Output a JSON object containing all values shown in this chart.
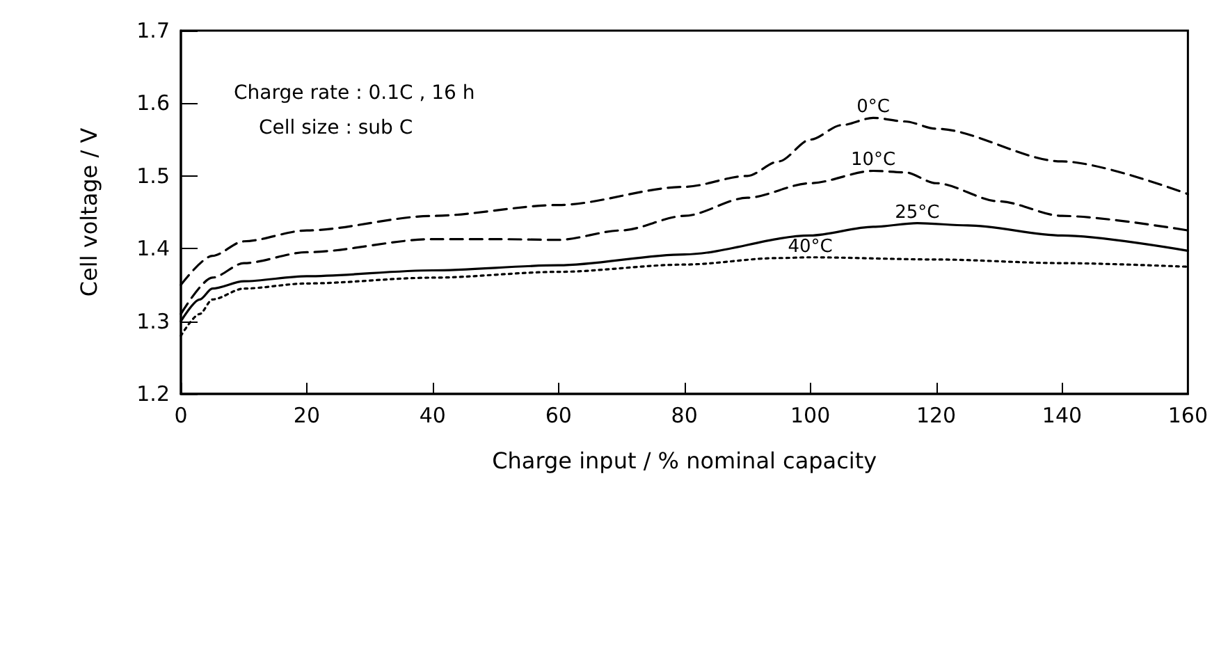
{
  "chart_data": {
    "type": "line",
    "xlabel": "Charge input / % nominal capacity",
    "ylabel": "Cell voltage / V",
    "annotations": [
      "Charge rate : 0.1C , 16 h",
      "Cell size : sub C"
    ],
    "xlim": [
      0,
      160
    ],
    "xticks": [
      0,
      20,
      40,
      60,
      80,
      100,
      120,
      140,
      160
    ],
    "ylim": [
      1.2,
      1.7
    ],
    "yticks": [
      1.2,
      1.3,
      1.4,
      1.5,
      1.6,
      1.7
    ],
    "grid": false,
    "legend": false,
    "marker": "none",
    "series": [
      {
        "name": "0°C",
        "color": "#000000",
        "line_style": "dashed",
        "x": [
          0,
          5,
          10,
          20,
          40,
          60,
          80,
          90,
          95,
          100,
          105,
          110,
          115,
          120,
          140,
          160
        ],
        "values": [
          1.35,
          1.39,
          1.41,
          1.425,
          1.445,
          1.46,
          1.485,
          1.5,
          1.52,
          1.55,
          1.57,
          1.58,
          1.575,
          1.565,
          1.52,
          1.475
        ]
      },
      {
        "name": "10°C",
        "color": "#000000",
        "line_style": "dashed",
        "x": [
          0,
          5,
          10,
          20,
          40,
          50,
          60,
          70,
          80,
          90,
          100,
          110,
          115,
          120,
          130,
          140,
          160
        ],
        "values": [
          1.31,
          1.36,
          1.38,
          1.395,
          1.413,
          1.413,
          1.412,
          1.425,
          1.445,
          1.47,
          1.49,
          1.507,
          1.505,
          1.49,
          1.465,
          1.445,
          1.425
        ]
      },
      {
        "name": "25°C",
        "color": "#000000",
        "line_style": "solid",
        "x": [
          0,
          3,
          5,
          10,
          20,
          40,
          60,
          80,
          100,
          110,
          117,
          125,
          140,
          160
        ],
        "values": [
          1.3,
          1.33,
          1.345,
          1.355,
          1.362,
          1.37,
          1.377,
          1.392,
          1.418,
          1.43,
          1.435,
          1.432,
          1.418,
          1.397
        ]
      },
      {
        "name": "40°C",
        "color": "#000000",
        "line_style": "dotted",
        "x": [
          0,
          3,
          5,
          10,
          20,
          40,
          60,
          80,
          95,
          100,
          120,
          140,
          160
        ],
        "values": [
          1.28,
          1.31,
          1.33,
          1.345,
          1.352,
          1.36,
          1.368,
          1.378,
          1.387,
          1.388,
          1.385,
          1.38,
          1.375
        ]
      }
    ]
  }
}
